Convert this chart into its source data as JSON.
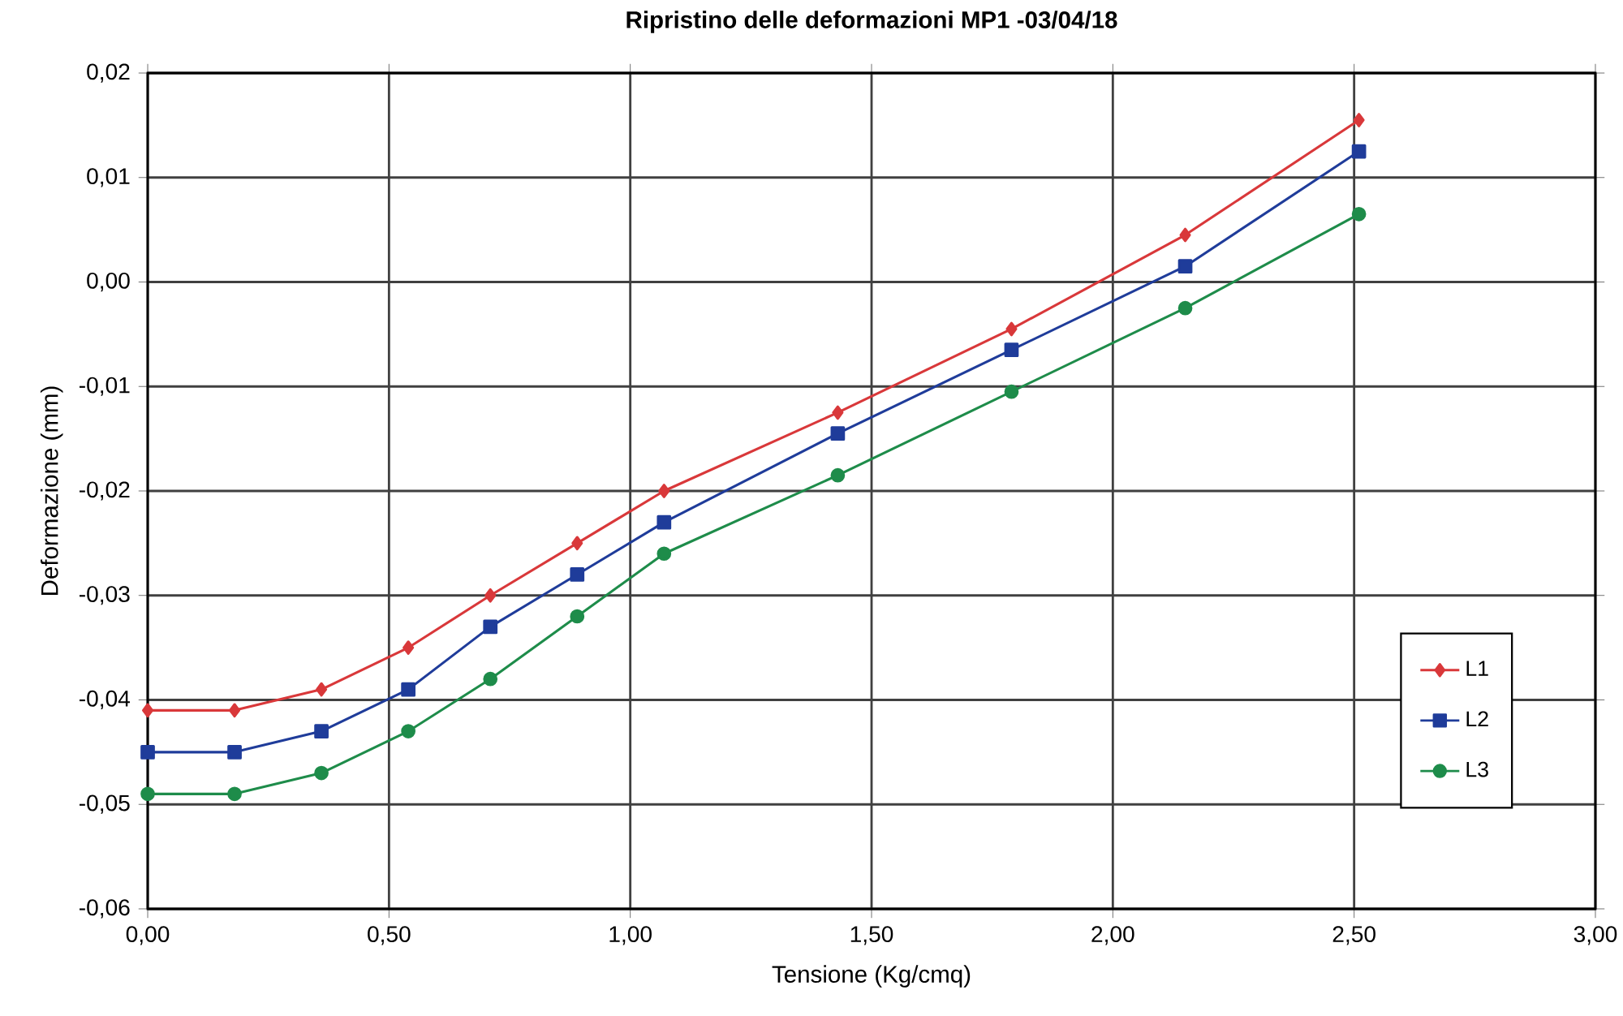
{
  "chart_data": {
    "type": "line",
    "title": "Ripristino delle deformazioni MP1 -03/04/18",
    "xlabel": "Tensione (Kg/cmq)",
    "ylabel": "Deformazione (mm)",
    "x": [
      0,
      0.18,
      0.36,
      0.54,
      0.71,
      0.89,
      1.07,
      1.43,
      1.79,
      2.15,
      2.51
    ],
    "series": [
      {
        "name": "L1",
        "color": "#d9383a",
        "marker": "diamond",
        "values": [
          -0.041,
          -0.041,
          -0.039,
          -0.035,
          -0.03,
          -0.025,
          -0.02,
          -0.0125,
          -0.0045,
          0.0045,
          0.0155
        ]
      },
      {
        "name": "L2",
        "color": "#1f3c9a",
        "marker": "square",
        "values": [
          -0.045,
          -0.045,
          -0.043,
          -0.039,
          -0.033,
          -0.028,
          -0.023,
          -0.0145,
          -0.0065,
          0.0015,
          0.0125
        ]
      },
      {
        "name": "L3",
        "color": "#1e8c4a",
        "marker": "circle",
        "values": [
          -0.049,
          -0.049,
          -0.047,
          -0.043,
          -0.038,
          -0.032,
          -0.026,
          -0.0185,
          -0.0105,
          -0.0025,
          0.0065
        ]
      }
    ],
    "xlim": [
      0,
      3
    ],
    "xticks": [
      {
        "value": 0,
        "label": "0,00"
      },
      {
        "value": 0.5,
        "label": "0,50"
      },
      {
        "value": 1,
        "label": "1,00"
      },
      {
        "value": 1.5,
        "label": "1,50"
      },
      {
        "value": 2,
        "label": "2,00"
      },
      {
        "value": 2.5,
        "label": "2,50"
      },
      {
        "value": 3,
        "label": "3,00"
      }
    ],
    "ylim": [
      -0.06,
      0.02
    ],
    "yticks": [
      {
        "value": -0.06,
        "label": "-0,06"
      },
      {
        "value": -0.05,
        "label": "-0,05"
      },
      {
        "value": -0.04,
        "label": "-0,04"
      },
      {
        "value": -0.03,
        "label": "-0,03"
      },
      {
        "value": -0.02,
        "label": "-0,02"
      },
      {
        "value": -0.01,
        "label": "-0,01"
      },
      {
        "value": 0,
        "label": "0,00"
      },
      {
        "value": 0.01,
        "label": "0,01"
      },
      {
        "value": 0.02,
        "label": "0,02"
      }
    ],
    "grid": true,
    "legend": "right",
    "line_style": "solid"
  }
}
